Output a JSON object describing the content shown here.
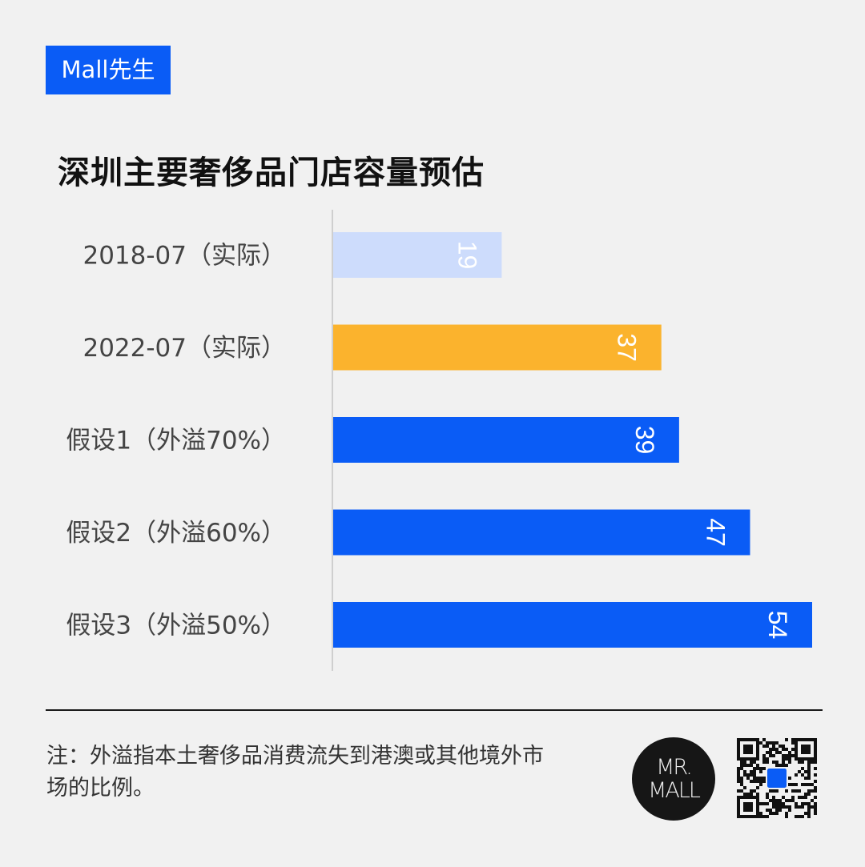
{
  "brand": {
    "label": "Mall先生",
    "color": "#0a5cf6"
  },
  "title": "深圳主要奢侈品门店容量预估",
  "chart_data": {
    "type": "bar",
    "orientation": "horizontal",
    "title": "深圳主要奢侈品门店容量预估",
    "categories": [
      "2018-07（实际）",
      "2022-07（实际）",
      "假设1（外溢70%）",
      "假设2（外溢60%）",
      "假设3（外溢50%）"
    ],
    "values": [
      19,
      37,
      39,
      47,
      54
    ],
    "colors": [
      "#cddcfc",
      "#fbb32d",
      "#0a5cf6",
      "#0a5cf6",
      "#0a5cf6"
    ],
    "data_labels": [
      "19",
      "37",
      "39",
      "47",
      "54"
    ],
    "xlim": [
      0,
      54
    ],
    "grid": false,
    "legend": "none"
  },
  "footer": {
    "note": "注：外溢指本土奢侈品消费流失到港澳或其他境外市场的比例。",
    "logo_text_line1": "MR.",
    "logo_text_line2": "MALL",
    "qr_icon": "qr-code-icon"
  }
}
